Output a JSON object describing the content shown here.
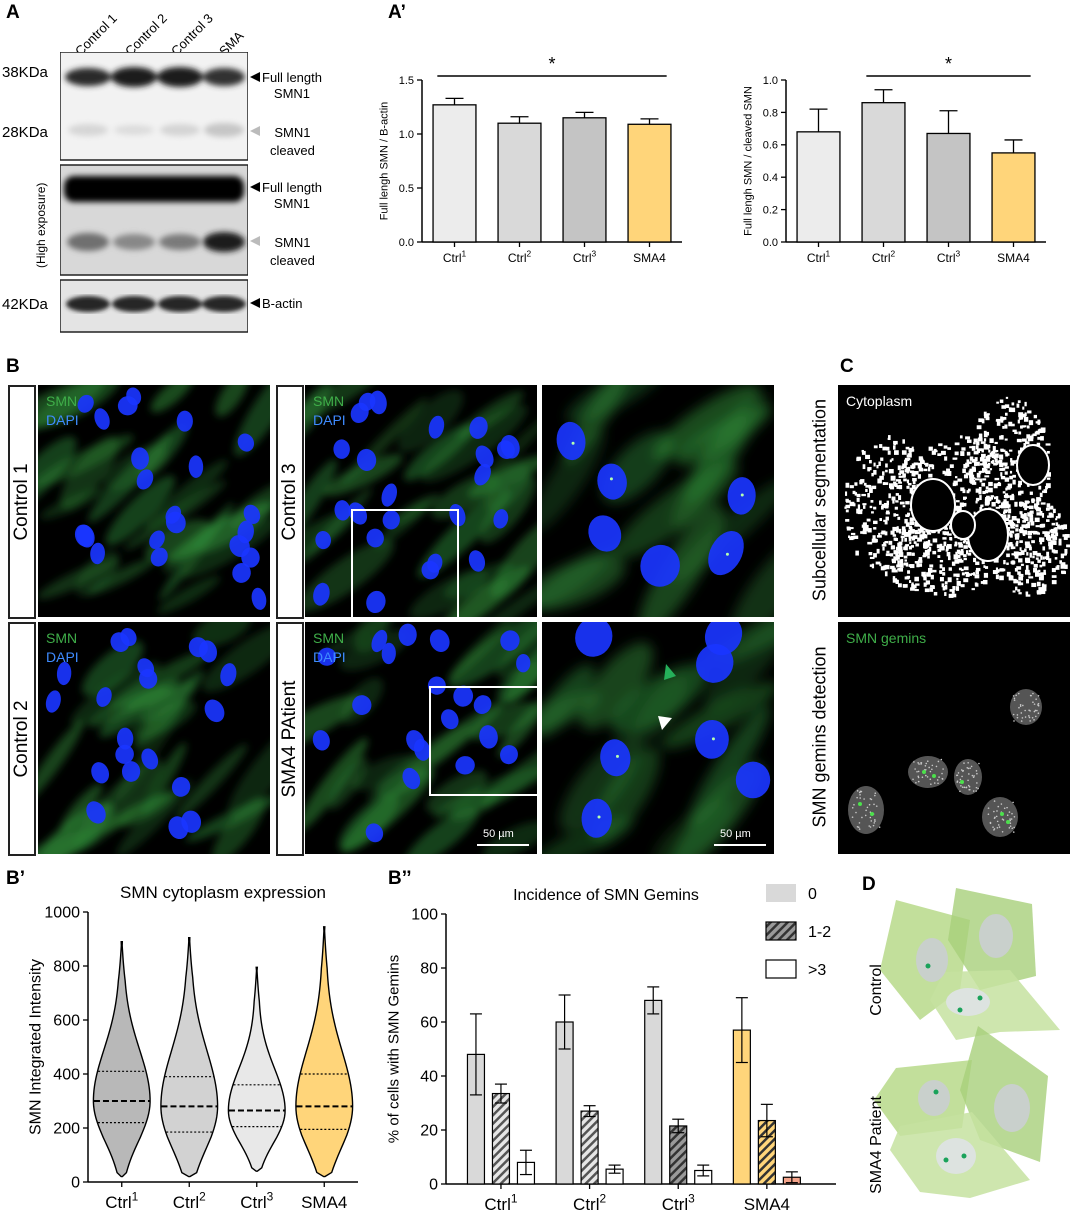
{
  "panels": {
    "A": "A",
    "A_prime": "A’",
    "B": "B",
    "B_prime": "B’",
    "B_dprime": "B’’",
    "C": "C",
    "D": "D"
  },
  "western": {
    "lanes": [
      "Control 1",
      "Control 2",
      "Control 3",
      "SMA"
    ],
    "markers": {
      "kda38": "38KDa",
      "kda28": "28KDa",
      "kda42": "42KDa"
    },
    "high_exposure": "(High exposure)",
    "bands": {
      "full_length_1": "Full length",
      "full_length_2": "SMN1",
      "cleaved_1": "SMN1",
      "cleaved_2": "cleaved",
      "actin": "B-actin"
    }
  },
  "microscopy": {
    "channels": {
      "smn": "SMN",
      "dapi": "DAPI"
    },
    "rows": {
      "control1": "Control 1",
      "control2": "Control 2",
      "control3": "Control 3",
      "sma4": "SMA4 PAtient"
    },
    "scale_bar": "50 µm",
    "colors": {
      "smn": "#3fae49",
      "dapi": "#1a35ff"
    }
  },
  "segmentation": {
    "side_top": "Subcellular segmentation",
    "side_bottom": "SMN gemins detection",
    "cytoplasm": "Cytoplasm",
    "gemins": "SMN gemins"
  },
  "schematic": {
    "control": "Control",
    "sma4": "SMA4 Patient"
  },
  "chart_data": [
    {
      "id": "A_prime_left",
      "type": "bar",
      "title": "",
      "ylabel": "Full lengh SMN / B-actin",
      "categories": [
        "Ctrl",
        "Ctrl",
        "Ctrl",
        "SMA4"
      ],
      "category_sup": [
        "1",
        "2",
        "3",
        ""
      ],
      "values": [
        1.27,
        1.1,
        1.15,
        1.09
      ],
      "errors": [
        0.06,
        0.06,
        0.05,
        0.05
      ],
      "colors": [
        "#ececec",
        "#d9d9d9",
        "#c4c4c4",
        "#ffd57a"
      ],
      "ylim": [
        0,
        1.5
      ],
      "yticks": [
        "0.0",
        "0.5",
        "1.0",
        "1.5"
      ],
      "ytick_values": [
        0,
        0.5,
        1,
        1.5
      ],
      "significance": {
        "from": 0,
        "to": 3,
        "label": "*"
      }
    },
    {
      "id": "A_prime_right",
      "type": "bar",
      "title": "",
      "ylabel": "Full lengh SMN / cleaved SMN",
      "categories": [
        "Ctrl",
        "Ctrl",
        "Ctrl",
        "SMA4"
      ],
      "category_sup": [
        "1",
        "2",
        "3",
        ""
      ],
      "values": [
        0.68,
        0.86,
        0.67,
        0.55
      ],
      "errors": [
        0.14,
        0.08,
        0.14,
        0.08
      ],
      "colors": [
        "#ececec",
        "#d9d9d9",
        "#c4c4c4",
        "#ffd57a"
      ],
      "ylim": [
        0,
        1.0
      ],
      "yticks": [
        "0.0",
        "0.2",
        "0.4",
        "0.6",
        "0.8",
        "1.0"
      ],
      "ytick_values": [
        0,
        0.2,
        0.4,
        0.6,
        0.8,
        1.0
      ],
      "significance": {
        "from": 1,
        "to": 3,
        "label": "*"
      }
    },
    {
      "id": "B_prime",
      "type": "violin",
      "title": "SMN cytoplasm expression",
      "ylabel": "SMN Integrated Intensity",
      "categories": [
        "Ctrl",
        "Ctrl",
        "Ctrl",
        "SMA4"
      ],
      "category_sup": [
        "1",
        "2",
        "3",
        ""
      ],
      "ylim": [
        0,
        1000
      ],
      "yticks": [
        "0",
        "200",
        "400",
        "600",
        "800",
        "1000"
      ],
      "ytick_values": [
        0,
        200,
        400,
        600,
        800,
        1000
      ],
      "min": [
        20,
        20,
        40,
        20
      ],
      "max": [
        890,
        905,
        795,
        945
      ],
      "q1": [
        220,
        185,
        205,
        195
      ],
      "median": [
        300,
        280,
        265,
        280
      ],
      "q3": [
        410,
        390,
        360,
        400
      ],
      "colors": [
        "#b8b8b8",
        "#d2d2d2",
        "#e8e8e8",
        "#ffd57a"
      ]
    },
    {
      "id": "B_dprime",
      "type": "bar",
      "title": "Incidence of SMN Gemins",
      "ylabel": "% of cells with SMN Gemins",
      "categories": [
        "Ctrl",
        "Ctrl",
        "Ctrl",
        "SMA4"
      ],
      "category_sup": [
        "1",
        "2",
        "3",
        ""
      ],
      "ylim": [
        0,
        100
      ],
      "yticks": [
        "0",
        "20",
        "40",
        "60",
        "80",
        "100"
      ],
      "ytick_values": [
        0,
        20,
        40,
        60,
        80,
        100
      ],
      "series": [
        {
          "name": "0",
          "values": [
            48,
            60,
            68,
            57
          ],
          "errors": [
            15,
            10,
            5,
            12
          ]
        },
        {
          "name": "1-2",
          "values": [
            33.5,
            27,
            21.5,
            23.5
          ],
          "errors": [
            3.5,
            2,
            2.5,
            6
          ]
        },
        {
          "name": ">3",
          "values": [
            8,
            5.5,
            5,
            2.5
          ],
          "errors": [
            4.5,
            1.5,
            2,
            2
          ]
        }
      ],
      "bar_fills": [
        [
          "#d9d9d9",
          "#d9d9d9",
          "#d9d9d9",
          "#ffd57a"
        ],
        [
          "hatch-light",
          "hatch-light",
          "hatch-dark",
          "hatch-yellow"
        ],
        [
          "#ffffff",
          "#ffffff",
          "#ffffff",
          "#f4a38a"
        ]
      ],
      "legend_position": "top-right"
    }
  ]
}
